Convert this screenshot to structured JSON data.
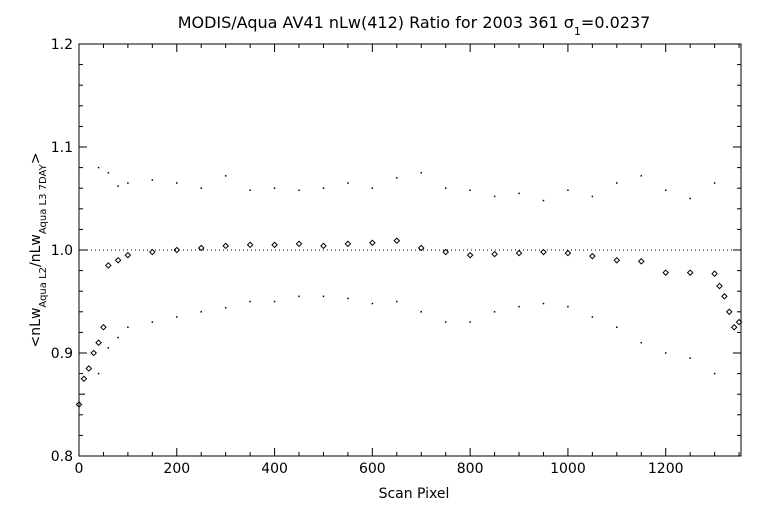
{
  "chart_data": {
    "type": "scatter",
    "title": "MODIS/Aqua AV41 nLw(412) Ratio for 2003 361 σ",
    "title_sub": "1",
    "title_value": "=0.0237",
    "xlabel": "Scan Pixel",
    "ylabel_parts": {
      "open": "<nLw",
      "sub1": "Aqua L2",
      "mid": "/nLw",
      "sub2": "Aqua L3 7DAY",
      "close": ">"
    },
    "xlim": [
      0,
      1354
    ],
    "ylim": [
      0.8,
      1.2
    ],
    "x_ticks": [
      0,
      200,
      400,
      600,
      800,
      1000,
      1200
    ],
    "x_tick_labels": [
      "0",
      "200",
      "400",
      "600",
      "800",
      "1000",
      "1200"
    ],
    "y_ticks": [
      0.8,
      0.9,
      1.0,
      1.1,
      1.2
    ],
    "y_tick_labels": [
      "0.8",
      "0.9",
      "1.0",
      "1.1",
      "1.2"
    ],
    "reference_line": 1.0,
    "series": [
      {
        "role": "mean",
        "marker": "diamond",
        "x": [
          0,
          10,
          20,
          30,
          40,
          50,
          60,
          80,
          100,
          150,
          200,
          250,
          300,
          350,
          400,
          450,
          500,
          550,
          600,
          650,
          700,
          750,
          800,
          850,
          900,
          950,
          1000,
          1050,
          1100,
          1150,
          1200,
          1250,
          1300,
          1310,
          1320,
          1330,
          1340,
          1350
        ],
        "y": [
          0.85,
          0.875,
          0.885,
          0.9,
          0.91,
          0.925,
          0.985,
          0.99,
          0.995,
          0.998,
          1.0,
          1.002,
          1.004,
          1.005,
          1.005,
          1.006,
          1.004,
          1.006,
          1.007,
          1.009,
          1.002,
          0.998,
          0.995,
          0.996,
          0.997,
          0.998,
          0.997,
          0.994,
          0.99,
          0.989,
          0.978,
          0.978,
          0.977,
          0.965,
          0.955,
          0.94,
          0.925,
          0.93
        ]
      },
      {
        "role": "upper",
        "marker": "dot",
        "x": [
          40,
          60,
          80,
          100,
          150,
          200,
          250,
          300,
          350,
          400,
          450,
          500,
          550,
          600,
          650,
          700,
          750,
          800,
          850,
          900,
          950,
          1000,
          1050,
          1100,
          1150,
          1200,
          1250,
          1300
        ],
        "y": [
          1.08,
          1.075,
          1.062,
          1.065,
          1.068,
          1.065,
          1.06,
          1.072,
          1.058,
          1.06,
          1.058,
          1.06,
          1.065,
          1.06,
          1.07,
          1.075,
          1.06,
          1.058,
          1.052,
          1.055,
          1.048,
          1.058,
          1.052,
          1.065,
          1.072,
          1.058,
          1.05,
          1.065
        ]
      },
      {
        "role": "lower",
        "marker": "dot",
        "x": [
          10,
          40,
          60,
          80,
          100,
          150,
          200,
          250,
          300,
          350,
          400,
          450,
          500,
          550,
          600,
          650,
          700,
          750,
          800,
          850,
          900,
          950,
          1000,
          1050,
          1100,
          1150,
          1200,
          1250,
          1300
        ],
        "y": [
          0.86,
          0.88,
          0.905,
          0.915,
          0.925,
          0.93,
          0.935,
          0.94,
          0.944,
          0.95,
          0.95,
          0.955,
          0.955,
          0.953,
          0.948,
          0.95,
          0.94,
          0.93,
          0.93,
          0.94,
          0.945,
          0.948,
          0.945,
          0.935,
          0.925,
          0.91,
          0.9,
          0.895,
          0.88
        ]
      }
    ]
  }
}
